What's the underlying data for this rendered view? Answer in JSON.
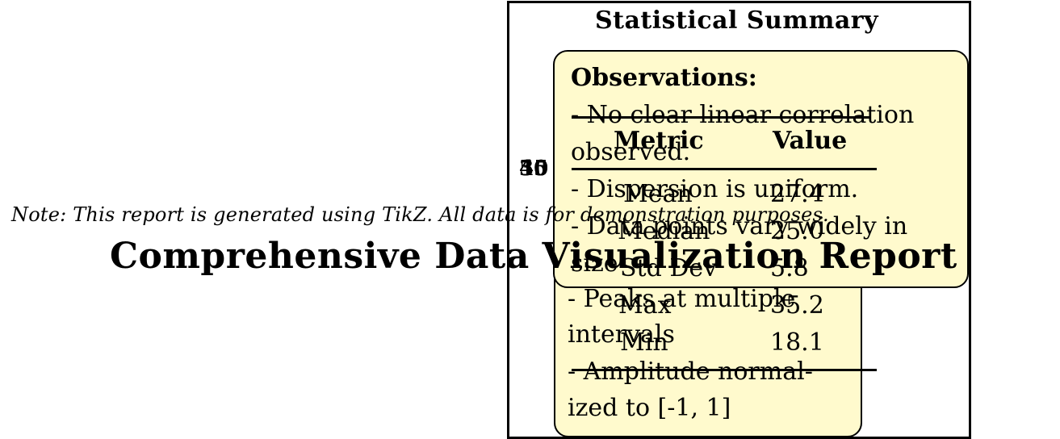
{
  "summary": {
    "title": "Statistical Summary"
  },
  "observations": {
    "title": "Observations:",
    "lines": [
      "- No clear linear correlation",
      "observed.",
      "- Dispersion is uniform.",
      "- Data points vary widely in",
      "size"
    ]
  },
  "secondary_notes": {
    "lines": [
      "- Peaks at multiple",
      "intervals",
      "- Amplitude normal-",
      "ized to [-1, 1]"
    ]
  },
  "stats_table": {
    "headers": [
      "Metric",
      "Value"
    ],
    "rows": [
      {
        "metric": "Mean",
        "value": "27.4"
      },
      {
        "metric": "Median",
        "value": "25.0"
      },
      {
        "metric": "Std Dev",
        "value": "5.8"
      },
      {
        "metric": "Max",
        "value": "35.2"
      },
      {
        "metric": "Min",
        "value": "18.1"
      }
    ]
  },
  "ticks": [
    "35",
    "40",
    "45",
    "50"
  ],
  "footer": {
    "note": "Note: This report is generated using TikZ. All data is for demonstration purposes.",
    "report_title": "Comprehensive Data Visualization Report"
  },
  "colors": {
    "note_background": "#fffacd",
    "border": "#000000"
  }
}
